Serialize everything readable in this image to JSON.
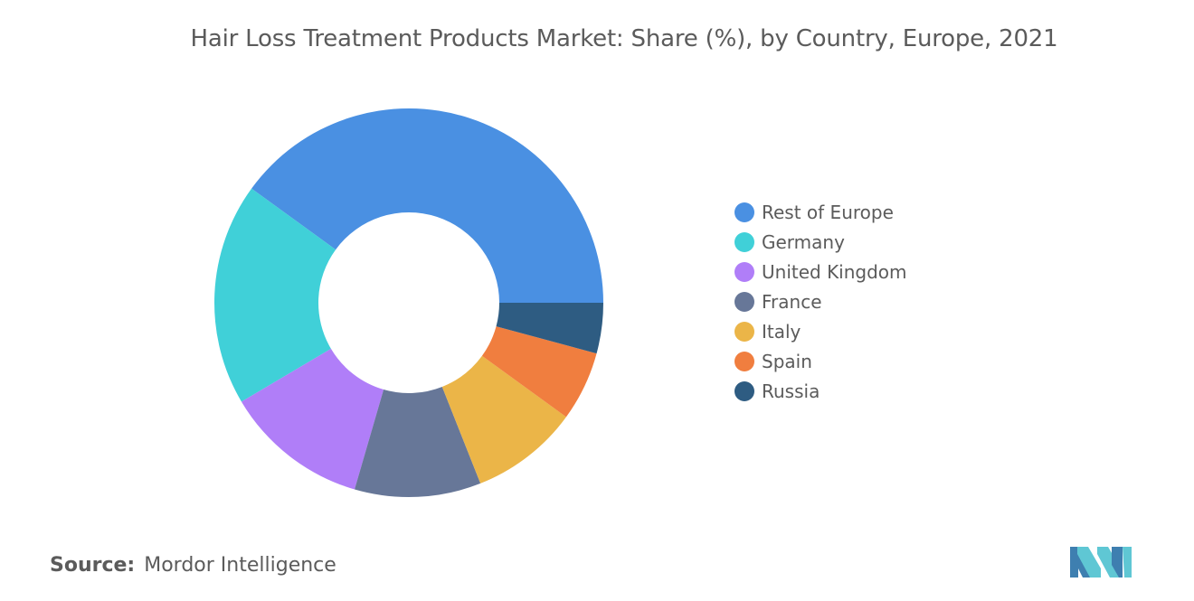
{
  "chart_data": {
    "type": "pie",
    "donut": true,
    "title": "Hair Loss Treatment Products Market: Share (%), by Country, Europe, 2021",
    "categories": [
      "Rest of Europe",
      "Germany",
      "United Kingdom",
      "France",
      "Italy",
      "Spain",
      "Russia"
    ],
    "values": [
      40.0,
      18.5,
      12.0,
      10.5,
      9.0,
      5.8,
      4.2
    ],
    "colors": [
      "#4a90e2",
      "#40d0d8",
      "#b07ef8",
      "#677798",
      "#ebb548",
      "#f07e3f",
      "#2e5c82"
    ],
    "legend_position": "right"
  },
  "source": {
    "label": "Source:",
    "text": "Mordor Intelligence"
  },
  "logo": {
    "icon": "mordor-intelligence-logo-icon",
    "colors": [
      "#5fc7d4",
      "#3e7fb0"
    ]
  }
}
